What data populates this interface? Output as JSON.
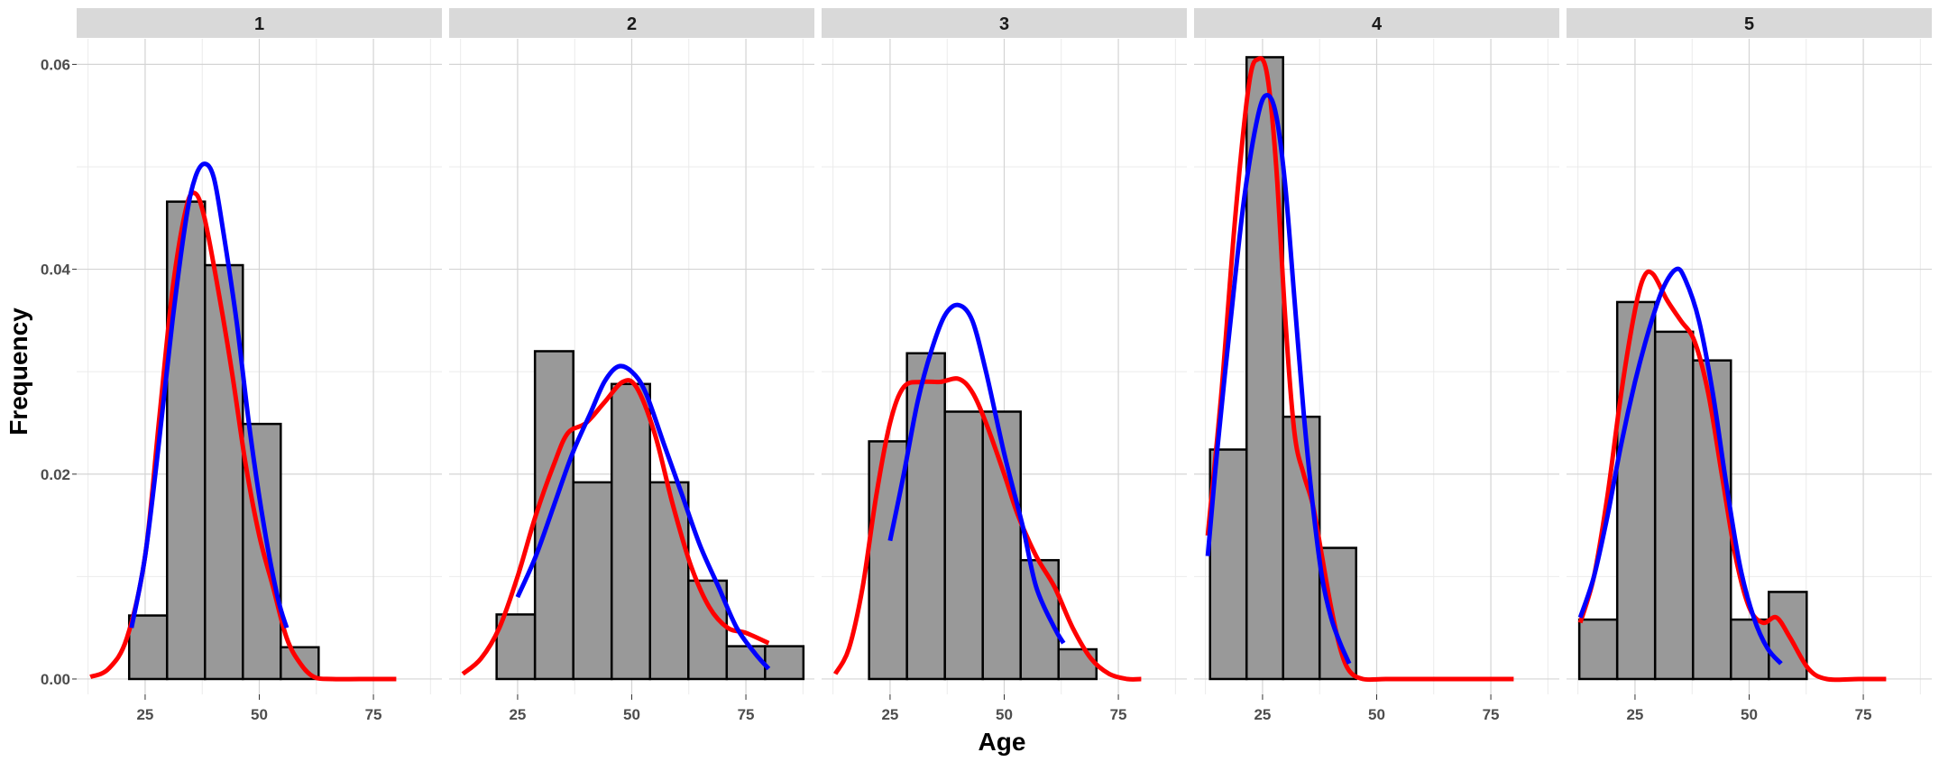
{
  "chart_data": {
    "type": "histogram-facet",
    "xlabel": "Age",
    "ylabel": "Frequency",
    "xlim": [
      10,
      90
    ],
    "ylim": [
      -0.0015,
      0.0625
    ],
    "x_ticks": [
      25,
      50,
      75
    ],
    "x_tick_labels": [
      "25",
      "50",
      "75"
    ],
    "y_ticks": [
      0,
      0.02,
      0.04,
      0.06
    ],
    "y_tick_labels": [
      "0.00",
      "0.02",
      "0.04",
      "0.06"
    ],
    "series_colors": {
      "red_density": "#ff0000",
      "blue_density": "#0000ff",
      "bar_fill": "#999999",
      "bar_outline": "#000000"
    },
    "facets": [
      {
        "label": "1",
        "bins": [
          [
            21.5,
            29.8,
            0.0062
          ],
          [
            29.8,
            38.1,
            0.0466
          ],
          [
            38.1,
            46.4,
            0.0404
          ],
          [
            46.4,
            54.7,
            0.0249
          ],
          [
            54.7,
            63.0,
            0.0031
          ]
        ],
        "red_curve": [
          [
            13,
            0.0002
          ],
          [
            17,
            0.001
          ],
          [
            21,
            0.004
          ],
          [
            25,
            0.012
          ],
          [
            28,
            0.025
          ],
          [
            31,
            0.038
          ],
          [
            34,
            0.046
          ],
          [
            36,
            0.0474
          ],
          [
            38,
            0.045
          ],
          [
            41,
            0.038
          ],
          [
            44,
            0.03
          ],
          [
            47,
            0.021
          ],
          [
            50,
            0.014
          ],
          [
            53,
            0.009
          ],
          [
            56,
            0.004
          ],
          [
            59,
            0.0015
          ],
          [
            62,
            0.0002
          ],
          [
            66,
            0
          ],
          [
            72,
            0
          ],
          [
            80,
            0
          ]
        ],
        "blue_curve": [
          [
            22,
            0.005
          ],
          [
            25,
            0.012
          ],
          [
            28,
            0.023
          ],
          [
            31,
            0.035
          ],
          [
            34,
            0.045
          ],
          [
            36,
            0.049
          ],
          [
            38,
            0.0503
          ],
          [
            40,
            0.049
          ],
          [
            42,
            0.044
          ],
          [
            45,
            0.035
          ],
          [
            48,
            0.024
          ],
          [
            51,
            0.015
          ],
          [
            54,
            0.008
          ],
          [
            56,
            0.005
          ]
        ]
      },
      {
        "label": "2",
        "bins": [
          [
            20.4,
            28.8,
            0.0063
          ],
          [
            28.8,
            37.2,
            0.032
          ],
          [
            37.2,
            45.6,
            0.0192
          ],
          [
            45.6,
            54.0,
            0.0288
          ],
          [
            54.0,
            62.4,
            0.0192
          ],
          [
            62.4,
            70.8,
            0.0096
          ],
          [
            70.8,
            79.2,
            0.0032
          ],
          [
            79.2,
            87.6,
            0.0032
          ]
        ],
        "red_curve": [
          [
            13,
            0.0005
          ],
          [
            17,
            0.002
          ],
          [
            21,
            0.005
          ],
          [
            25,
            0.01
          ],
          [
            29,
            0.016
          ],
          [
            33,
            0.021
          ],
          [
            36,
            0.024
          ],
          [
            40,
            0.025
          ],
          [
            44,
            0.027
          ],
          [
            48,
            0.029
          ],
          [
            51,
            0.0285
          ],
          [
            55,
            0.024
          ],
          [
            59,
            0.017
          ],
          [
            63,
            0.011
          ],
          [
            67,
            0.007
          ],
          [
            71,
            0.005
          ],
          [
            75,
            0.0045
          ],
          [
            80,
            0.0035
          ]
        ],
        "blue_curve": [
          [
            25,
            0.008
          ],
          [
            29,
            0.012
          ],
          [
            33,
            0.017
          ],
          [
            37,
            0.022
          ],
          [
            41,
            0.026
          ],
          [
            44,
            0.029
          ],
          [
            47,
            0.0305
          ],
          [
            50,
            0.03
          ],
          [
            53,
            0.028
          ],
          [
            57,
            0.023
          ],
          [
            61,
            0.018
          ],
          [
            65,
            0.013
          ],
          [
            69,
            0.009
          ],
          [
            73,
            0.005
          ],
          [
            77,
            0.0025
          ],
          [
            80,
            0.001
          ]
        ]
      },
      {
        "label": "3",
        "bins": [
          [
            20.4,
            28.7,
            0.0232
          ],
          [
            28.7,
            37.0,
            0.0318
          ],
          [
            37.0,
            45.3,
            0.0261
          ],
          [
            45.3,
            53.6,
            0.0261
          ],
          [
            53.6,
            61.9,
            0.0116
          ],
          [
            61.9,
            70.2,
            0.0029
          ]
        ],
        "red_curve": [
          [
            13,
            0.0005
          ],
          [
            16,
            0.003
          ],
          [
            19,
            0.009
          ],
          [
            22,
            0.018
          ],
          [
            25,
            0.025
          ],
          [
            28,
            0.0285
          ],
          [
            32,
            0.029
          ],
          [
            36,
            0.029
          ],
          [
            40,
            0.0293
          ],
          [
            43,
            0.028
          ],
          [
            46,
            0.025
          ],
          [
            50,
            0.02
          ],
          [
            53,
            0.016
          ],
          [
            57,
            0.012
          ],
          [
            61,
            0.009
          ],
          [
            65,
            0.005
          ],
          [
            69,
            0.002
          ],
          [
            73,
            0.0005
          ],
          [
            77,
            0
          ],
          [
            80,
            0
          ]
        ],
        "blue_curve": [
          [
            25,
            0.0135
          ],
          [
            28,
            0.02
          ],
          [
            31,
            0.027
          ],
          [
            34,
            0.032
          ],
          [
            37,
            0.0355
          ],
          [
            40,
            0.0365
          ],
          [
            43,
            0.035
          ],
          [
            46,
            0.03
          ],
          [
            50,
            0.022
          ],
          [
            54,
            0.015
          ],
          [
            57,
            0.009
          ],
          [
            61,
            0.005
          ],
          [
            63,
            0.0035
          ]
        ]
      },
      {
        "label": "4",
        "bins": [
          [
            13.5,
            21.5,
            0.0224
          ],
          [
            21.5,
            29.5,
            0.0607
          ],
          [
            29.5,
            37.5,
            0.0256
          ],
          [
            37.5,
            45.5,
            0.0128
          ]
        ],
        "red_curve": [
          [
            13,
            0.014
          ],
          [
            16,
            0.028
          ],
          [
            19,
            0.045
          ],
          [
            22,
            0.058
          ],
          [
            24,
            0.0605
          ],
          [
            26,
            0.059
          ],
          [
            28,
            0.05
          ],
          [
            30,
            0.035
          ],
          [
            32,
            0.024
          ],
          [
            34,
            0.02
          ],
          [
            36,
            0.017
          ],
          [
            38,
            0.012
          ],
          [
            40,
            0.007
          ],
          [
            42,
            0.003
          ],
          [
            44,
            0.0008
          ],
          [
            47,
            0
          ],
          [
            52,
            0
          ],
          [
            60,
            0
          ],
          [
            70,
            0
          ],
          [
            80,
            0
          ]
        ],
        "blue_curve": [
          [
            13,
            0.012
          ],
          [
            15,
            0.022
          ],
          [
            18,
            0.035
          ],
          [
            21,
            0.047
          ],
          [
            24,
            0.055
          ],
          [
            26,
            0.057
          ],
          [
            28,
            0.055
          ],
          [
            30,
            0.048
          ],
          [
            32,
            0.037
          ],
          [
            34,
            0.026
          ],
          [
            36,
            0.017
          ],
          [
            38,
            0.01
          ],
          [
            40,
            0.006
          ],
          [
            42,
            0.0035
          ],
          [
            44,
            0.0015
          ]
        ]
      },
      {
        "label": "5",
        "bins": [
          [
            12.8,
            21.1,
            0.0058
          ],
          [
            21.1,
            29.4,
            0.0368
          ],
          [
            29.4,
            37.7,
            0.0339
          ],
          [
            37.7,
            46.0,
            0.0311
          ],
          [
            46.0,
            54.3,
            0.0058
          ],
          [
            54.3,
            62.6,
            0.0085
          ]
        ],
        "red_curve": [
          [
            13,
            0.0055
          ],
          [
            16,
            0.01
          ],
          [
            19,
            0.018
          ],
          [
            22,
            0.028
          ],
          [
            25,
            0.036
          ],
          [
            27,
            0.0393
          ],
          [
            29,
            0.0395
          ],
          [
            32,
            0.037
          ],
          [
            35,
            0.035
          ],
          [
            38,
            0.033
          ],
          [
            41,
            0.028
          ],
          [
            44,
            0.02
          ],
          [
            47,
            0.012
          ],
          [
            50,
            0.007
          ],
          [
            53,
            0.0055
          ],
          [
            56,
            0.006
          ],
          [
            59,
            0.004
          ],
          [
            63,
            0.001
          ],
          [
            67,
            0
          ],
          [
            74,
            0
          ],
          [
            80,
            0
          ]
        ],
        "blue_curve": [
          [
            13,
            0.006
          ],
          [
            16,
            0.01
          ],
          [
            19,
            0.016
          ],
          [
            22,
            0.023
          ],
          [
            25,
            0.029
          ],
          [
            28,
            0.034
          ],
          [
            31,
            0.038
          ],
          [
            34,
            0.04
          ],
          [
            36,
            0.039
          ],
          [
            39,
            0.035
          ],
          [
            42,
            0.028
          ],
          [
            45,
            0.019
          ],
          [
            48,
            0.011
          ],
          [
            51,
            0.006
          ],
          [
            54,
            0.003
          ],
          [
            57,
            0.0015
          ]
        ]
      }
    ]
  }
}
